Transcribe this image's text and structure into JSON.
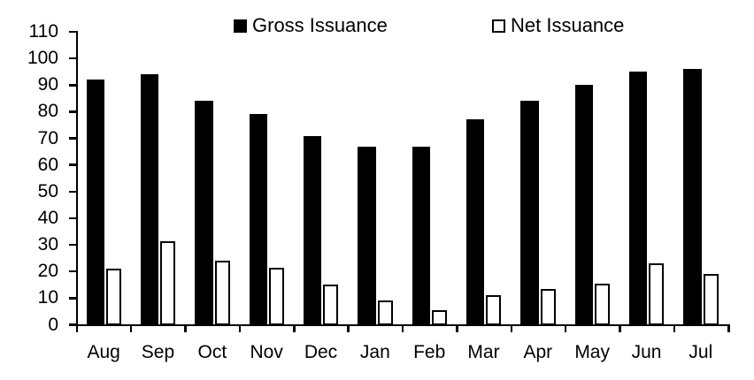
{
  "chart_data": {
    "type": "bar",
    "title": "",
    "xlabel": "",
    "ylabel": "",
    "categories": [
      "Aug",
      "Sep",
      "Oct",
      "Nov",
      "Dec",
      "Jan",
      "Feb",
      "Mar",
      "Apr",
      "May",
      "Jun",
      "Jul"
    ],
    "series": [
      {
        "name": "Gross Issuance",
        "fill": "#000000",
        "outline": "#000000",
        "values": [
          92,
          94,
          84,
          79,
          71,
          67,
          67,
          77,
          84,
          90,
          95,
          96
        ]
      },
      {
        "name": "Net Issuance",
        "fill": "#ffffff",
        "outline": "#000000",
        "values": [
          21,
          31.5,
          24,
          21.5,
          15,
          9,
          5.5,
          11,
          13.5,
          15.5,
          23,
          19
        ]
      }
    ],
    "ylim": [
      0,
      110
    ],
    "yticks": [
      0,
      10,
      20,
      30,
      40,
      50,
      60,
      70,
      80,
      90,
      100,
      110
    ],
    "grid": false,
    "legend_position": "top"
  },
  "colors": {
    "axis": "#000000",
    "text": "#000000",
    "background": "#ffffff"
  }
}
